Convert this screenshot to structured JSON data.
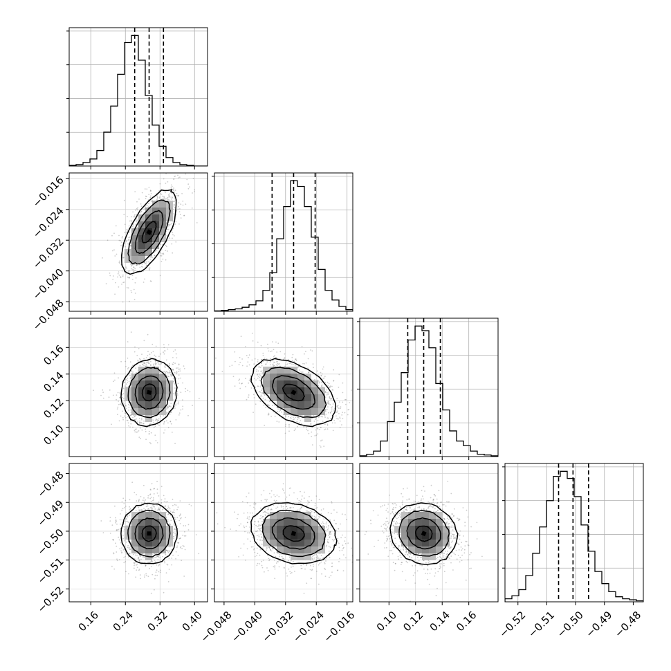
{
  "chart_data": {
    "type": "corner",
    "grid": true,
    "variables": [
      {
        "ticks": [
          0.16,
          0.24,
          0.32,
          0.4
        ],
        "tick_labels": [
          "0.16",
          "0.24",
          "0.32",
          "0.40"
        ],
        "range": [
          0.11,
          0.43
        ],
        "hist_counts": [
          1,
          2,
          5,
          10,
          22,
          48,
          85,
          130,
          175,
          185,
          150,
          100,
          58,
          28,
          12,
          5,
          2,
          1,
          0,
          0
        ],
        "quantiles": [
          0.2615,
          0.2949,
          0.3281
        ]
      },
      {
        "ticks": [
          -0.048,
          -0.04,
          -0.032,
          -0.024,
          -0.016
        ],
        "tick_labels": [
          "−0.048",
          "−0.040",
          "−0.032",
          "−0.024",
          "−0.016"
        ],
        "range": [
          -0.0505,
          -0.0145
        ],
        "hist_counts": [
          0.5,
          1,
          2,
          3,
          5,
          8,
          13,
          26,
          48,
          90,
          130,
          162,
          155,
          130,
          92,
          52,
          26,
          14,
          6,
          2
        ],
        "quantiles": [
          -0.0355,
          -0.0299,
          -0.0243
        ]
      },
      {
        "ticks": [
          0.1,
          0.12,
          0.14,
          0.16
        ],
        "tick_labels": [
          "0.10",
          "0.12",
          "0.14",
          "0.16"
        ],
        "range": [
          0.078,
          0.182
        ],
        "hist_counts": [
          1,
          3,
          7,
          20,
          45,
          70,
          108,
          150,
          168,
          162,
          140,
          94,
          60,
          33,
          20,
          14,
          7,
          3,
          2,
          1
        ],
        "quantiles": [
          0.1141,
          0.1261,
          0.1386
        ]
      },
      {
        "ticks": [
          -0.52,
          -0.51,
          -0.5,
          -0.49,
          -0.48
        ],
        "tick_labels": [
          "−0.52",
          "−0.51",
          "−0.50",
          "−0.49",
          "−0.48"
        ],
        "range": [
          -0.5245,
          -0.4765
        ],
        "hist_counts": [
          3,
          6,
          12,
          26,
          48,
          74,
          100,
          124,
          129,
          122,
          104,
          76,
          50,
          30,
          18,
          10,
          5,
          3,
          2,
          1
        ],
        "quantiles": [
          -0.5059,
          -0.5009,
          -0.4955
        ]
      }
    ],
    "pairs": [
      {
        "row": 1,
        "col": 0,
        "mean": [
          0.295,
          -0.0299
        ],
        "sd": [
          0.032,
          0.0055
        ],
        "corr": 0.65
      },
      {
        "row": 2,
        "col": 0,
        "mean": [
          0.295,
          0.1262
        ],
        "sd": [
          0.032,
          0.0125
        ],
        "corr": 0.08
      },
      {
        "row": 2,
        "col": 1,
        "mean": [
          -0.0299,
          0.1262
        ],
        "sd": [
          0.0055,
          0.0125
        ],
        "corr": -0.45
      },
      {
        "row": 3,
        "col": 0,
        "mean": [
          0.295,
          -0.5008
        ],
        "sd": [
          0.032,
          0.0053
        ],
        "corr": 0.0
      },
      {
        "row": 3,
        "col": 1,
        "mean": [
          -0.0299,
          -0.5008
        ],
        "sd": [
          0.0055,
          0.0053
        ],
        "corr": -0.2
      },
      {
        "row": 3,
        "col": 2,
        "mean": [
          0.1262,
          -0.5008
        ],
        "sd": [
          0.0125,
          0.0053
        ],
        "corr": -0.1
      }
    ],
    "contour_levels_sigma": [
      0.5,
      1.0,
      1.5,
      2.0
    ]
  }
}
